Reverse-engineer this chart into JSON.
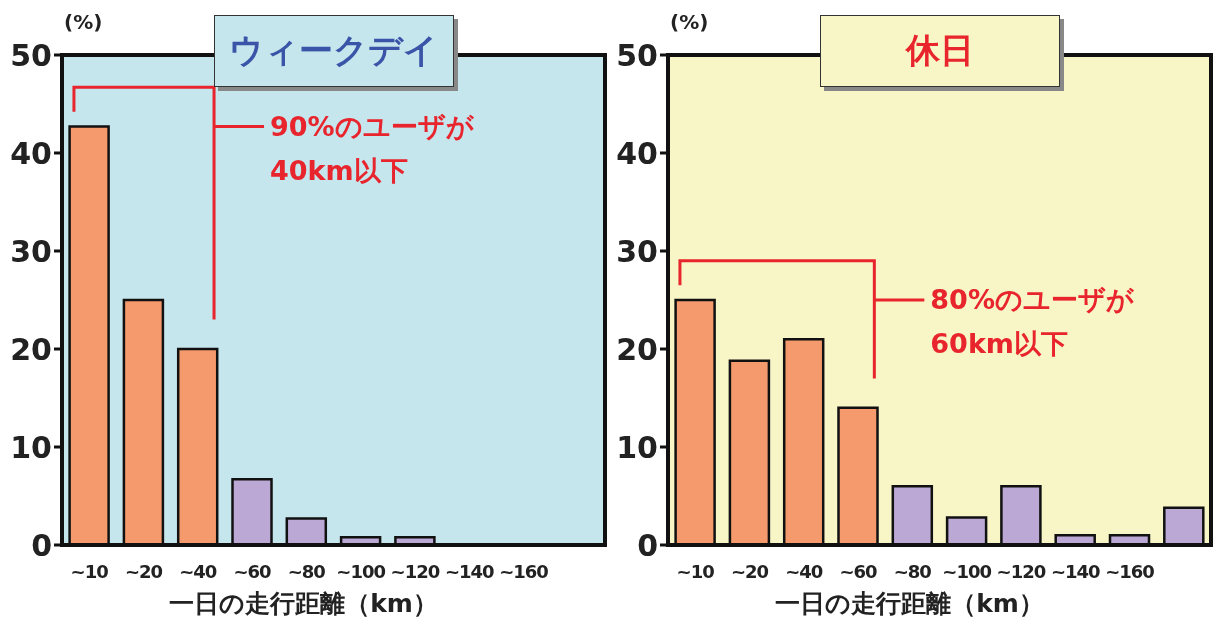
{
  "chart_data": [
    {
      "type": "bar",
      "title": "ウィークデイ",
      "ylabel": "(%)",
      "xlabel": "一日の走行距離（km）",
      "categories": [
        "~10",
        "~20",
        "~40",
        "~60",
        "~80",
        "~100",
        "~120",
        "~140",
        "~160",
        null
      ],
      "values": [
        42.7,
        25,
        20,
        6.7,
        2.7,
        0.8,
        0.8,
        null,
        null,
        null
      ],
      "colors": [
        "#f59a6c",
        "#f59a6c",
        "#f59a6c",
        "#bca8d4",
        "#bca8d4",
        "#bca8d4",
        "#bca8d4",
        "#bca8d4",
        "#bca8d4",
        "#bca8d4"
      ],
      "ylim": [
        0,
        50
      ],
      "yticks": [
        0,
        10,
        20,
        30,
        40,
        50
      ],
      "grid": false,
      "legend": false,
      "annotations": [
        "90%のユーザが\n40km以下"
      ]
    },
    {
      "type": "bar",
      "title": "休日",
      "ylabel": "(%)",
      "xlabel": "一日の走行距離（km）",
      "categories": [
        "~10",
        "~20",
        "~40",
        "~60",
        "~80",
        "~100",
        "~120",
        "~140",
        "~160",
        null
      ],
      "values": [
        25,
        18.8,
        21,
        14,
        6,
        2.8,
        6,
        1,
        1,
        3.8
      ],
      "colors": [
        "#f59a6c",
        "#f59a6c",
        "#f59a6c",
        "#f59a6c",
        "#bca8d4",
        "#bca8d4",
        "#bca8d4",
        "#bca8d4",
        "#bca8d4",
        "#bca8d4"
      ],
      "ylim": [
        0,
        50
      ],
      "yticks": [
        0,
        10,
        20,
        30,
        40,
        50
      ],
      "grid": false,
      "legend": false,
      "annotations": [
        "80%のユーザが\n60km以下"
      ]
    }
  ]
}
